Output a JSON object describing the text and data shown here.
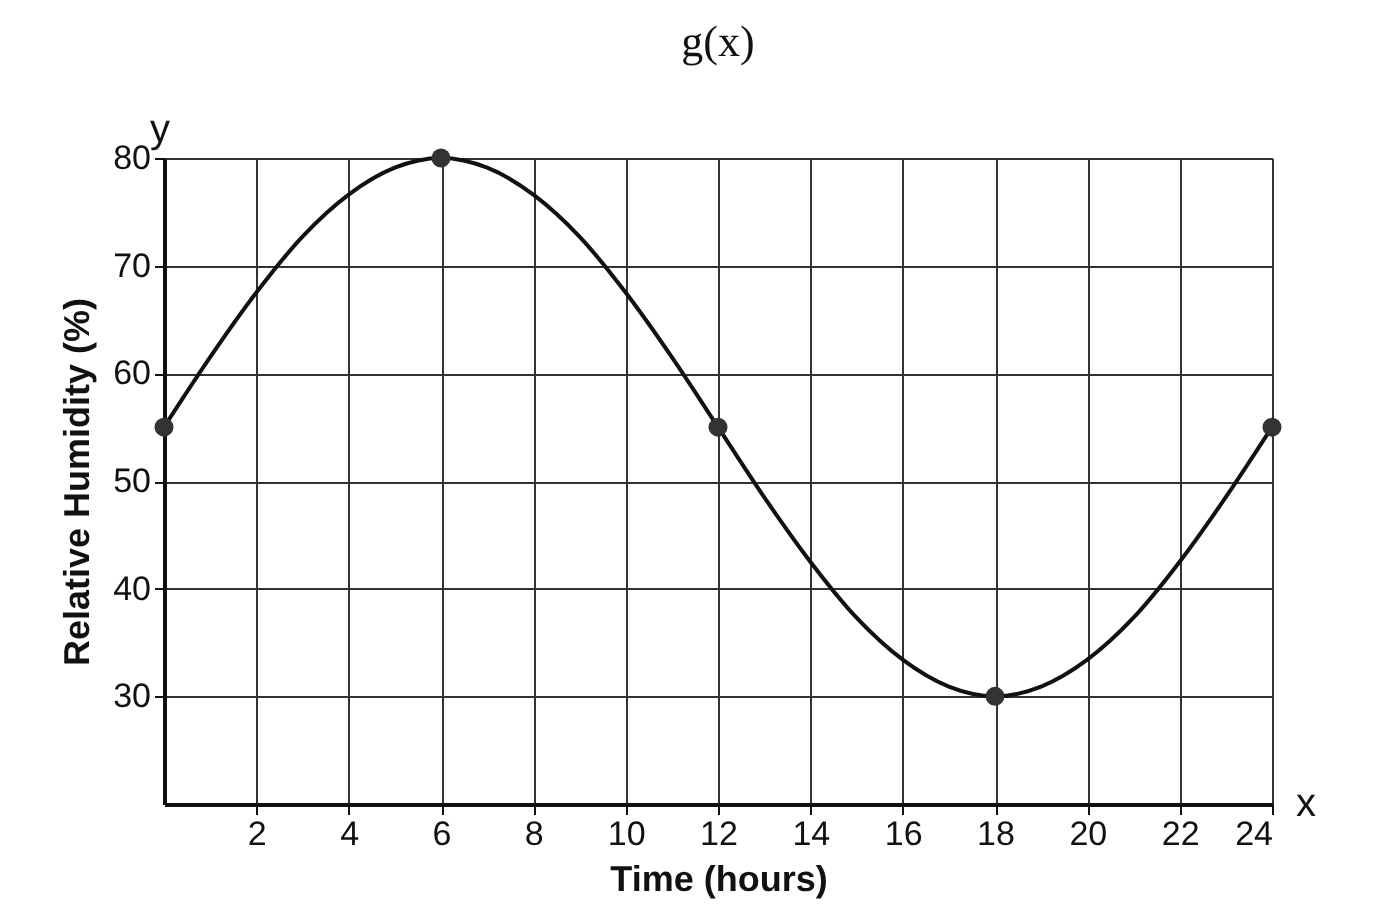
{
  "chart_data": {
    "type": "line",
    "title": "g(x)",
    "xlabel": "Time (hours)",
    "ylabel": "Relative Humidity (%)",
    "annotations": [
      "y",
      "x"
    ],
    "series": [
      {
        "color": "#111111",
        "marker": "none",
        "x": [
          0,
          1,
          2,
          3,
          4,
          5,
          6,
          7,
          8,
          9,
          10,
          11,
          12,
          13,
          14,
          15,
          16,
          17,
          18,
          19,
          20,
          21,
          22,
          23,
          24
        ],
        "values": [
          55,
          61.5,
          67.5,
          72.7,
          76.6,
          79.1,
          80,
          79.1,
          76.6,
          72.7,
          67.5,
          61.5,
          55,
          48.5,
          42.5,
          37.3,
          33.4,
          30.9,
          30,
          30.9,
          33.4,
          37.3,
          42.5,
          48.5,
          55
        ]
      },
      {
        "type": "scatter",
        "marker": "circle",
        "color": "#333333",
        "x": [
          0,
          6,
          12,
          18,
          24
        ],
        "values": [
          55,
          80,
          55,
          30,
          55
        ]
      }
    ],
    "grid": true,
    "xlim": [
      0,
      24
    ],
    "ylim": [
      20,
      80
    ],
    "xticks": [
      2,
      4,
      6,
      8,
      10,
      12,
      14,
      16,
      18,
      20,
      22,
      24
    ],
    "yticks": [
      30,
      40,
      50,
      60,
      70,
      80
    ]
  }
}
